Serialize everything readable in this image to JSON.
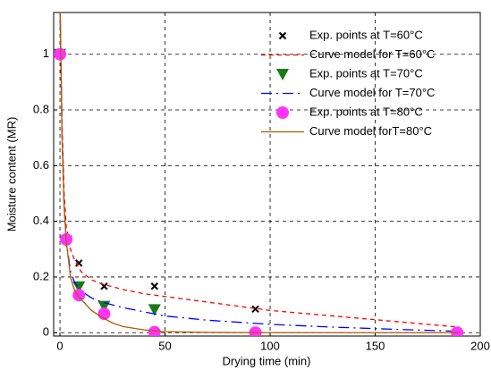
{
  "chart_data": {
    "type": "scatter",
    "xlabel": "Drying time (min)",
    "ylabel": "Moisture content (MR)",
    "xlim": [
      -3,
      200
    ],
    "ylim": [
      -0.012,
      1.15
    ],
    "xticks": [
      0,
      50,
      100,
      150,
      200
    ],
    "yticks": [
      0,
      0.2,
      0.4,
      0.6,
      0.8,
      1
    ],
    "grid": true,
    "series": [
      {
        "name": "Exp. points at T=60°C",
        "color": "#000000",
        "marker": "x",
        "x": [
          0,
          3,
          9,
          21,
          45,
          93
        ],
        "values": [
          1,
          0.33,
          0.25,
          0.167,
          0.167,
          0.085
        ]
      },
      {
        "name": "Curve model for T=60°C",
        "color": "#ff0000",
        "linestyle": "dashed",
        "x": [
          0,
          1,
          2,
          3,
          5,
          7,
          10,
          15,
          20,
          25,
          30,
          40,
          50,
          70,
          100,
          130,
          160,
          190
        ],
        "values": [
          1.2,
          0.75,
          0.5,
          0.38,
          0.3,
          0.26,
          0.22,
          0.19,
          0.175,
          0.165,
          0.155,
          0.14,
          0.13,
          0.11,
          0.08,
          0.06,
          0.04,
          0.02
        ]
      },
      {
        "name": "Exp. points at T=70°C",
        "color": "#1a7a1a",
        "marker": "triangle-down",
        "x": [
          0,
          3,
          9,
          21,
          45
        ],
        "values": [
          1,
          0.33,
          0.165,
          0.095,
          0.083
        ]
      },
      {
        "name": "Curve model for T=70°C",
        "color": "#0000ff",
        "linestyle": "dashdot",
        "x": [
          0,
          1,
          2,
          3,
          5,
          7,
          10,
          15,
          20,
          25,
          30,
          40,
          50,
          70,
          100,
          130,
          160,
          190
        ],
        "values": [
          1.2,
          0.7,
          0.45,
          0.33,
          0.22,
          0.18,
          0.15,
          0.125,
          0.11,
          0.1,
          0.09,
          0.075,
          0.06,
          0.045,
          0.03,
          0.02,
          0.012,
          0.005
        ]
      },
      {
        "name": "Exp. points at T=80°C",
        "color": "#ff33ff",
        "marker": "circle",
        "x": [
          0,
          3,
          9,
          21,
          45,
          93,
          189
        ],
        "values": [
          1,
          0.335,
          0.135,
          0.068,
          0.002,
          0,
          0
        ]
      },
      {
        "name": "Curve model forT=80°C",
        "color": "#b35900",
        "linestyle": "solid",
        "x": [
          0,
          1,
          2,
          3,
          5,
          7,
          10,
          15,
          20,
          25,
          30,
          40,
          50,
          70,
          100,
          130,
          160,
          190
        ],
        "values": [
          1.2,
          0.7,
          0.45,
          0.33,
          0.2,
          0.15,
          0.12,
          0.08,
          0.055,
          0.035,
          0.022,
          0.01,
          0.004,
          0.001,
          0,
          0,
          0,
          0
        ]
      }
    ]
  }
}
